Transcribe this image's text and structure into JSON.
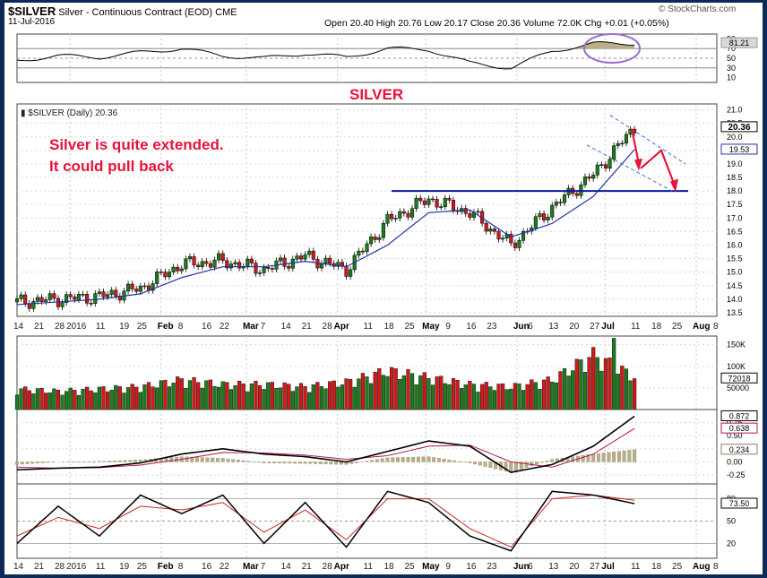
{
  "header": {
    "symbol": "$SILVER",
    "description": "Silver - Continuous Contract (EOD)",
    "exchange": "CME",
    "date": "11-Jul-2016",
    "ohlc": "Open 20.40  High 20.76  Low 20.17  Close 20.36  Volume 72.0K  Chg +0.01 (+0.05%)",
    "watermark": "© StockCharts.com"
  },
  "annotations": {
    "title": "SILVER",
    "note_line1": "Silver is quite extended.",
    "note_line2": "It could pull back"
  },
  "chart_data": [
    {
      "type": "line",
      "panel": "rsi",
      "ylim": [
        0,
        100
      ],
      "ticks": [
        "90",
        "70",
        "50",
        "30",
        "10"
      ],
      "current_value": "81.21",
      "x": [
        "2015-12-14",
        "2015-12-28",
        "2016-01-11",
        "2016-01-25",
        "2016-02-08",
        "2016-02-22",
        "2016-03-07",
        "2016-03-21",
        "2016-04-04",
        "2016-04-18",
        "2016-05-02",
        "2016-05-16",
        "2016-05-30",
        "2016-06-13",
        "2016-06-27",
        "2016-07-11"
      ],
      "values": [
        45,
        55,
        52,
        62,
        70,
        55,
        50,
        60,
        52,
        70,
        68,
        40,
        30,
        65,
        80,
        81
      ]
    },
    {
      "type": "candlestick",
      "panel": "price",
      "series_label": "$SILVER (Daily) 20.36",
      "ylim": [
        13.5,
        21.0
      ],
      "y_ticks": [
        "21.0",
        "20.5",
        "20.0",
        "19.5",
        "19.0",
        "18.5",
        "18.0",
        "17.5",
        "17.0",
        "16.5",
        "16.0",
        "15.5",
        "15.0",
        "14.5",
        "14.0",
        "13.5"
      ],
      "current_value": "20.36",
      "ma_value": "19.53",
      "x_ticks": [
        "14",
        "21",
        "28",
        "2016",
        "11",
        "19",
        "25",
        "Feb",
        "8",
        "16",
        "22",
        "Mar",
        "7",
        "14",
        "21",
        "28",
        "Apr",
        "11",
        "18",
        "25",
        "May",
        "9",
        "16",
        "23",
        "Jun",
        "6",
        "13",
        "20",
        "27",
        "Jul",
        "11",
        "18",
        "25",
        "Aug",
        "8"
      ],
      "x": [
        "2015-12-14",
        "2015-12-28",
        "2016-01-11",
        "2016-01-25",
        "2016-02-08",
        "2016-02-22",
        "2016-03-07",
        "2016-03-21",
        "2016-04-04",
        "2016-04-18",
        "2016-05-02",
        "2016-05-16",
        "2016-05-30",
        "2016-06-13",
        "2016-06-27",
        "2016-07-11"
      ],
      "close": [
        13.9,
        14.0,
        14.1,
        14.4,
        15.3,
        15.4,
        15.1,
        15.6,
        15.1,
        16.9,
        17.7,
        17.2,
        16.0,
        17.4,
        18.6,
        20.36
      ],
      "ma": [
        13.8,
        13.9,
        14.0,
        14.2,
        14.8,
        15.2,
        15.2,
        15.4,
        15.2,
        16.0,
        17.2,
        17.3,
        16.3,
        16.8,
        17.8,
        19.53
      ],
      "resistance_level": 18.0
    },
    {
      "type": "bar",
      "panel": "volume",
      "ylim": [
        0,
        170000
      ],
      "ticks": [
        "150K",
        "100K",
        "50000"
      ],
      "current_value": "72018",
      "x": [
        "2015-12-14",
        "2015-12-28",
        "2016-01-11",
        "2016-01-25",
        "2016-02-08",
        "2016-02-22",
        "2016-03-07",
        "2016-03-21",
        "2016-04-04",
        "2016-04-18",
        "2016-05-02",
        "2016-05-16",
        "2016-05-30",
        "2016-06-13",
        "2016-06-27",
        "2016-07-11"
      ],
      "values": [
        45000,
        40000,
        45000,
        50000,
        65000,
        55000,
        55000,
        50000,
        60000,
        85000,
        70000,
        55000,
        50000,
        65000,
        120000,
        72018
      ]
    },
    {
      "type": "line",
      "panel": "macd",
      "ticks": [
        "0.75",
        "0.50",
        "0.25",
        "0.00",
        "-0.25"
      ],
      "macd_value": "0.872",
      "signal_value": "0.638",
      "hist_value": "0.234",
      "x": [
        "2015-12-14",
        "2015-12-28",
        "2016-01-11",
        "2016-01-25",
        "2016-02-08",
        "2016-02-22",
        "2016-03-07",
        "2016-03-21",
        "2016-04-04",
        "2016-04-18",
        "2016-05-02",
        "2016-05-16",
        "2016-05-30",
        "2016-06-13",
        "2016-06-27",
        "2016-07-11"
      ],
      "macd": [
        -0.15,
        -0.12,
        -0.1,
        -0.02,
        0.15,
        0.25,
        0.15,
        0.1,
        0.0,
        0.2,
        0.4,
        0.3,
        -0.2,
        -0.05,
        0.3,
        0.872
      ],
      "signal": [
        -0.1,
        -0.12,
        -0.11,
        -0.06,
        0.05,
        0.18,
        0.17,
        0.13,
        0.05,
        0.12,
        0.3,
        0.32,
        0.0,
        -0.1,
        0.15,
        0.638
      ]
    },
    {
      "type": "line",
      "panel": "stochastic",
      "ticks": [
        "80",
        "50",
        "20"
      ],
      "current_value": "73.50",
      "x": [
        "2015-12-14",
        "2015-12-28",
        "2016-01-11",
        "2016-01-25",
        "2016-02-08",
        "2016-02-22",
        "2016-03-07",
        "2016-03-21",
        "2016-04-04",
        "2016-04-18",
        "2016-05-02",
        "2016-05-16",
        "2016-05-30",
        "2016-06-13",
        "2016-06-27",
        "2016-07-11"
      ],
      "k": [
        20,
        70,
        30,
        85,
        60,
        85,
        20,
        75,
        15,
        90,
        75,
        30,
        10,
        90,
        85,
        73.5
      ],
      "d": [
        30,
        55,
        40,
        70,
        65,
        75,
        35,
        65,
        25,
        80,
        80,
        40,
        15,
        80,
        85,
        78
      ]
    }
  ],
  "x_axis_bottom": [
    "14",
    "21",
    "28",
    "2016",
    "11",
    "19",
    "25",
    "Feb",
    "8",
    "16",
    "22",
    "Mar",
    "7",
    "14",
    "21",
    "28",
    "Apr",
    "11",
    "18",
    "25",
    "May",
    "9",
    "16",
    "23",
    "Jun",
    "6",
    "13",
    "20",
    "27",
    "Jul",
    "11",
    "18",
    "25",
    "Aug",
    "8"
  ]
}
